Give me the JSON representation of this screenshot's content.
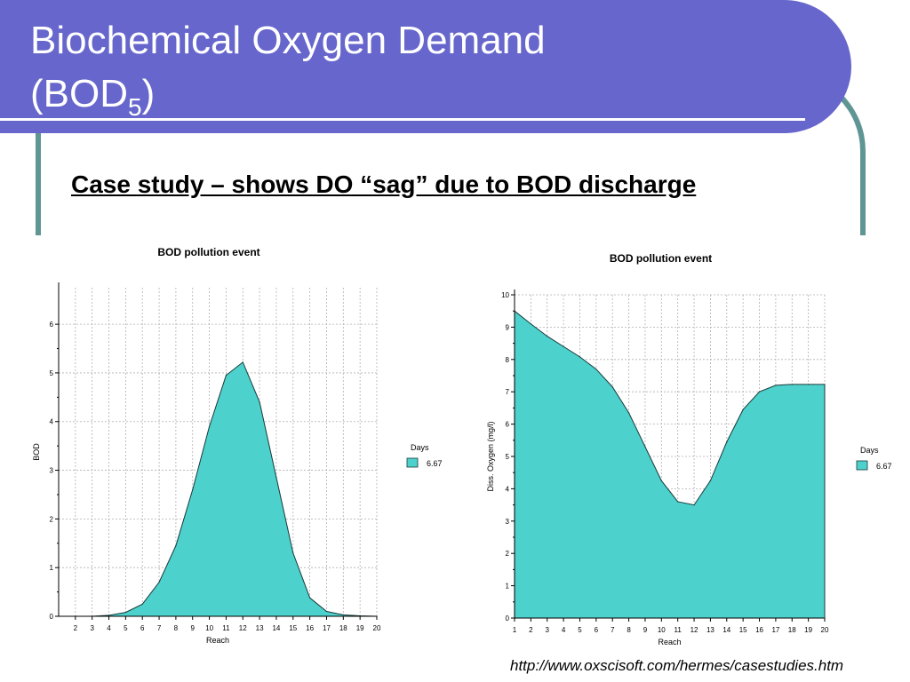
{
  "slide": {
    "title_line1": "Biochemical Oxygen Demand",
    "title_line2": "(BOD",
    "title_subscript": "5",
    "title_close": ")",
    "subtitle": "Case study – shows DO “sag” due to BOD discharge",
    "source_url": "http://www.oxscisoft.com/hermes/casestudies.htm"
  },
  "colors": {
    "banner": "#6666cc",
    "frame": "#5f9593",
    "fill": "#4dd1cc"
  },
  "chart_data": [
    {
      "type": "area",
      "title": "BOD pollution event",
      "xlabel": "Reach",
      "ylabel": "BOD",
      "ylim": [
        0,
        6.75
      ],
      "yticks": [
        0,
        1,
        2,
        3,
        4,
        5,
        6
      ],
      "xlim": [
        1,
        20
      ],
      "xticks": [
        2,
        3,
        4,
        5,
        6,
        7,
        8,
        9,
        10,
        11,
        12,
        13,
        14,
        15,
        16,
        17,
        18,
        19,
        20
      ],
      "grid": true,
      "legend": {
        "title": "Days",
        "position": "right"
      },
      "series": [
        {
          "name": "6.67",
          "x": [
            1,
            2,
            3,
            4,
            5,
            6,
            7,
            8,
            9,
            10,
            11,
            12,
            13,
            14,
            15,
            16,
            17,
            18,
            19,
            20
          ],
          "values": [
            0,
            0,
            0,
            0.02,
            0.08,
            0.25,
            0.7,
            1.45,
            2.6,
            3.9,
            4.95,
            5.22,
            4.4,
            2.85,
            1.3,
            0.38,
            0.1,
            0.03,
            0.01,
            0
          ]
        }
      ]
    },
    {
      "type": "area",
      "title": "BOD pollution event",
      "xlabel": "Reach",
      "ylabel": "Diss. Oxygen (mg/l)",
      "ylim": [
        0,
        10
      ],
      "yticks": [
        0,
        1,
        2,
        3,
        4,
        5,
        6,
        7,
        8,
        9,
        10
      ],
      "xlim": [
        1,
        20
      ],
      "xticks": [
        1,
        2,
        3,
        4,
        5,
        6,
        7,
        8,
        9,
        10,
        11,
        12,
        13,
        14,
        15,
        16,
        17,
        18,
        19,
        20
      ],
      "grid": true,
      "legend": {
        "title": "Days",
        "position": "right"
      },
      "series": [
        {
          "name": "6.67",
          "x": [
            1,
            2,
            3,
            4,
            5,
            6,
            7,
            8,
            9,
            10,
            11,
            12,
            13,
            14,
            15,
            16,
            17,
            18,
            19,
            20
          ],
          "values": [
            9.5,
            9.1,
            8.72,
            8.4,
            8.08,
            7.7,
            7.15,
            6.35,
            5.3,
            4.25,
            3.6,
            3.5,
            4.25,
            5.45,
            6.45,
            7.0,
            7.2,
            7.23,
            7.23,
            7.23
          ]
        }
      ]
    }
  ]
}
